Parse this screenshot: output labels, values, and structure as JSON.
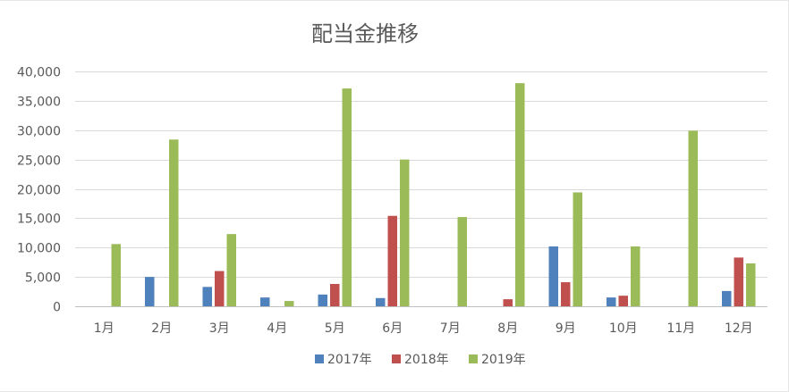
{
  "chart_data": {
    "type": "bar",
    "title": "配当金推移",
    "categories": [
      "1月",
      "2月",
      "3月",
      "4月",
      "5月",
      "6月",
      "7月",
      "8月",
      "9月",
      "10月",
      "11月",
      "12月"
    ],
    "series": [
      {
        "name": "2017年",
        "color": "#4f81bd",
        "values": [
          0,
          5000,
          3300,
          1500,
          2000,
          1400,
          0,
          0,
          10200,
          1500,
          0,
          2600
        ]
      },
      {
        "name": "2018年",
        "color": "#c0504d",
        "values": [
          0,
          0,
          6000,
          0,
          3800,
          15400,
          0,
          1200,
          4100,
          1800,
          0,
          8300
        ]
      },
      {
        "name": "2019年",
        "color": "#9bbb59",
        "values": [
          10600,
          28400,
          12300,
          900,
          37100,
          25000,
          15200,
          38000,
          19400,
          10200,
          29900,
          7300
        ]
      }
    ],
    "ylim": [
      0,
      40000
    ],
    "yticks": [
      "0",
      "5,000",
      "10,000",
      "15,000",
      "20,000",
      "25,000",
      "30,000",
      "35,000",
      "40,000"
    ],
    "grid": true,
    "legend_position": "bottom"
  }
}
